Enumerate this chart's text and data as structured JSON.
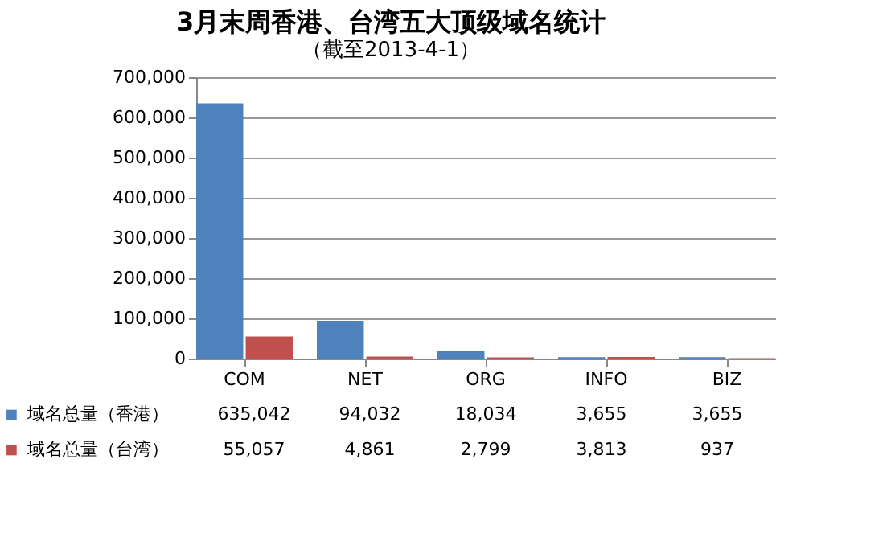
{
  "chart_data": {
    "type": "bar",
    "title": "3月末周香港、台湾五大顶级域名统计",
    "subtitle": "（截至2013-4-1）",
    "categories": [
      "COM",
      "NET",
      "ORG",
      "INFO",
      "BIZ"
    ],
    "series": [
      {
        "name": "域名总量（香港）",
        "color": "#4f81bd",
        "values": [
          635042,
          94032,
          18034,
          3655,
          3655
        ],
        "value_labels": [
          "635,042",
          "94,032",
          "18,034",
          "3,655",
          "3,655"
        ]
      },
      {
        "name": "域名总量（台湾）",
        "color": "#c0504d",
        "values": [
          55057,
          4861,
          2799,
          3813,
          937
        ],
        "value_labels": [
          "55,057",
          "4,861",
          "2,799",
          "3,813",
          "937"
        ]
      }
    ],
    "ylim": [
      0,
      700000
    ],
    "yticks": [
      0,
      {
        "value": 100000,
        "label": "100,000"
      },
      {
        "value": 200000,
        "label": "200,000"
      },
      {
        "value": 300000,
        "label": "300,000"
      },
      {
        "value": 400000,
        "label": "400,000"
      },
      {
        "value": 500000,
        "label": "500,000"
      },
      {
        "value": 600000,
        "label": "600,000"
      },
      {
        "value": 700000,
        "label": "700,000"
      }
    ],
    "grid": "y",
    "legend": "bottom"
  }
}
